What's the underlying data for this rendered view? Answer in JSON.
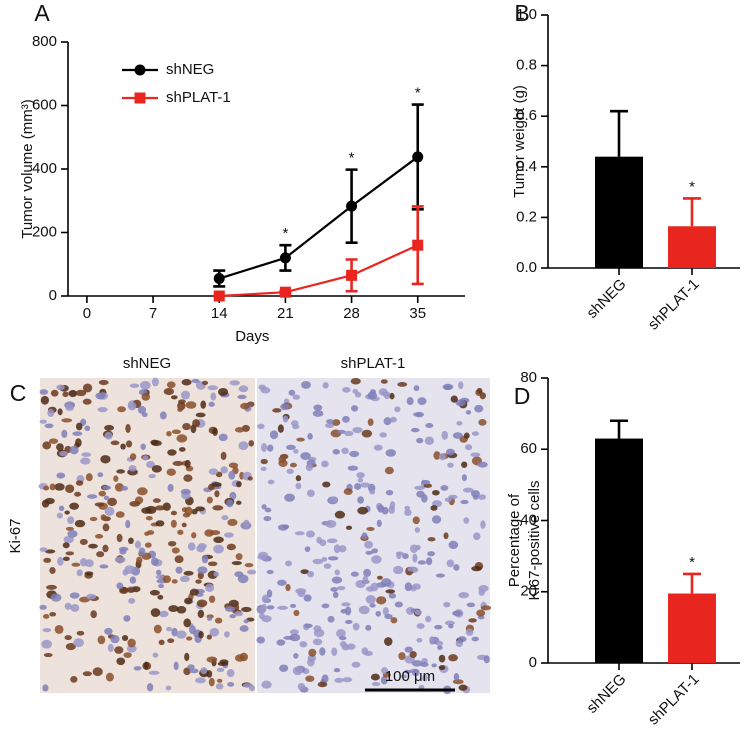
{
  "chart_data": [
    {
      "type": "line",
      "panel": "A",
      "xlabel": "Days",
      "ylabel": "Tumor volume (mm³)",
      "x": [
        14,
        21,
        28,
        35
      ],
      "xlim": [
        -2,
        40
      ],
      "xticks": [
        0,
        7,
        14,
        21,
        28,
        35
      ],
      "ylim": [
        0,
        800
      ],
      "yticks": [
        0,
        200,
        400,
        600,
        800
      ],
      "series": [
        {
          "name": "shNEG",
          "color": "#000000",
          "marker": "circle",
          "values": [
            55,
            120,
            283,
            438
          ],
          "errors": [
            25,
            40,
            115,
            165
          ],
          "annotations": [
            null,
            "*",
            "*",
            "*"
          ]
        },
        {
          "name": "shPLAT-1",
          "color": "#e8251f",
          "marker": "square",
          "values": [
            0,
            12,
            65,
            160
          ],
          "errors": [
            0,
            4,
            50,
            122
          ],
          "annotations": [
            null,
            null,
            null,
            null
          ]
        }
      ]
    },
    {
      "type": "bar",
      "panel": "B",
      "ylabel": "Tumor weight (g)",
      "categories": [
        "shNEG",
        "shPLAT-1"
      ],
      "values": [
        0.44,
        0.165
      ],
      "errors": [
        0.18,
        0.11
      ],
      "colors": [
        "#000000",
        "#e8251f"
      ],
      "annotations": [
        null,
        "*"
      ],
      "ylim": [
        0,
        1
      ],
      "yticks": [
        {
          "value": 0,
          "label": "0.0"
        },
        0.2,
        0.4,
        0.6,
        0.8,
        {
          "value": 1,
          "label": "1.0"
        }
      ]
    },
    {
      "type": "bar",
      "panel": "D",
      "ylabel": [
        "Percentage of",
        "Ki67-positive cells"
      ],
      "categories": [
        "shNEG",
        "shPLAT-1"
      ],
      "values": [
        63,
        19.5
      ],
      "errors": [
        5,
        5.5
      ],
      "colors": [
        "#000000",
        "#e8251f"
      ],
      "annotations": [
        null,
        "*"
      ],
      "ylim": [
        0,
        80
      ],
      "yticks": [
        0,
        20,
        40,
        60,
        80
      ]
    }
  ],
  "panel_c": {
    "panel": "C",
    "columns": [
      "shNEG",
      "shPLAT-1"
    ],
    "row": "Ki-67",
    "scale_bar": "100 μm"
  }
}
